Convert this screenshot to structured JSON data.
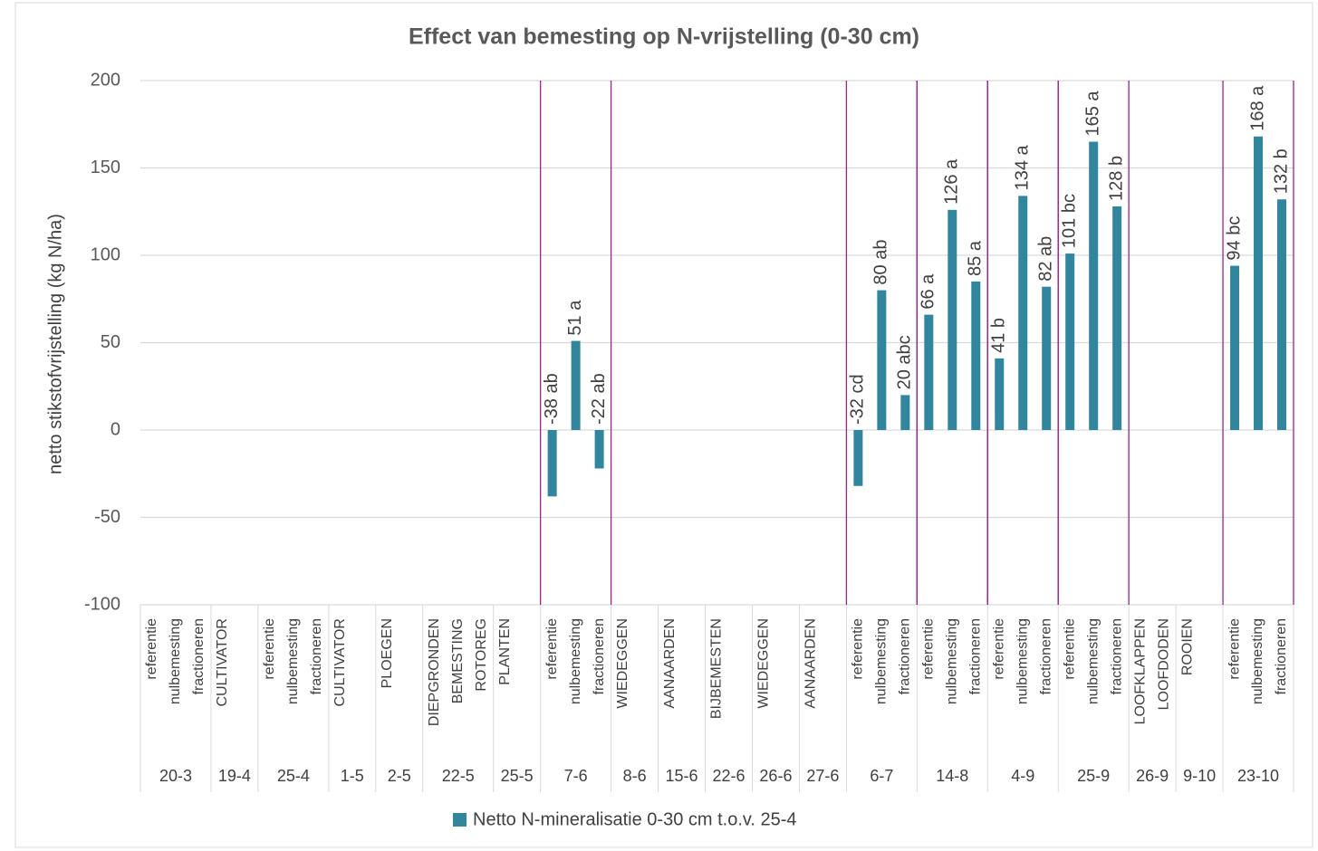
{
  "chart_data": {
    "type": "bar",
    "title": "Effect van bemesting op N-vrijstelling (0-30 cm)",
    "y_label": "netto stikstofvrijstelling (kg N/ha)",
    "series_name": "Netto N-mineralisatie 0-30 cm t.o.v. 25-4",
    "color": "#31859c",
    "separator_color": "#a0208f",
    "ylim": [
      -100,
      200
    ],
    "yticks": [
      -100,
      -50,
      0,
      50,
      100,
      150,
      200
    ],
    "grid": true,
    "legend": "bottom",
    "groups": [
      {
        "label": "20-3",
        "categories": [
          "referentie",
          "nulbemesting",
          "fractioneren"
        ],
        "values": [
          null,
          null,
          null
        ],
        "value_labels": [
          null,
          null,
          null
        ]
      },
      {
        "label": "19-4",
        "categories": [
          "CULTIVATOR",
          null
        ],
        "values": [
          null,
          null
        ],
        "value_labels": [
          null,
          null
        ]
      },
      {
        "label": "25-4",
        "categories": [
          "referentie",
          "nulbemesting",
          "fractioneren"
        ],
        "values": [
          null,
          null,
          null
        ],
        "value_labels": [
          null,
          null,
          null
        ]
      },
      {
        "label": "1-5",
        "categories": [
          "CULTIVATOR",
          null
        ],
        "values": [
          null,
          null
        ],
        "value_labels": [
          null,
          null
        ]
      },
      {
        "label": "2-5",
        "categories": [
          "PLOEGEN",
          null
        ],
        "values": [
          null,
          null
        ],
        "value_labels": [
          null,
          null
        ]
      },
      {
        "label": "22-5",
        "categories": [
          "DIEPGRONDEN",
          "BEMESTING",
          "ROTOREG"
        ],
        "values": [
          null,
          null,
          null
        ],
        "value_labels": [
          null,
          null,
          null
        ]
      },
      {
        "label": "25-5",
        "categories": [
          "PLANTEN",
          null
        ],
        "values": [
          null,
          null
        ],
        "value_labels": [
          null,
          null
        ]
      },
      {
        "label": "7-6",
        "categories": [
          "referentie",
          "nulbemesting",
          "fractioneren"
        ],
        "values": [
          -38,
          51,
          -22
        ],
        "value_labels": [
          "-38 ab",
          "51 a",
          "-22 ab"
        ]
      },
      {
        "label": "8-6",
        "categories": [
          "WIEDEGGEN",
          null
        ],
        "values": [
          null,
          null
        ],
        "value_labels": [
          null,
          null
        ]
      },
      {
        "label": "15-6",
        "categories": [
          "AANAARDEN",
          null
        ],
        "values": [
          null,
          null
        ],
        "value_labels": [
          null,
          null
        ]
      },
      {
        "label": "22-6",
        "categories": [
          "BIJBEMESTEN",
          null
        ],
        "values": [
          null,
          null
        ],
        "value_labels": [
          null,
          null
        ]
      },
      {
        "label": "26-6",
        "categories": [
          "WIEDEGGEN",
          null
        ],
        "values": [
          null,
          null
        ],
        "value_labels": [
          null,
          null
        ]
      },
      {
        "label": "27-6",
        "categories": [
          "AANAARDEN",
          null
        ],
        "values": [
          null,
          null
        ],
        "value_labels": [
          null,
          null
        ]
      },
      {
        "label": "6-7",
        "categories": [
          "referentie",
          "nulbemesting",
          "fractioneren"
        ],
        "values": [
          -32,
          80,
          20
        ],
        "value_labels": [
          "-32 cd",
          "80 ab",
          "20 abc"
        ]
      },
      {
        "label": "14-8",
        "categories": [
          "referentie",
          "nulbemesting",
          "fractioneren"
        ],
        "values": [
          66,
          126,
          85
        ],
        "value_labels": [
          "66 a",
          "126 a",
          "85 a"
        ]
      },
      {
        "label": "4-9",
        "categories": [
          "referentie",
          "nulbemesting",
          "fractioneren"
        ],
        "values": [
          41,
          134,
          82
        ],
        "value_labels": [
          "41 b",
          "134 a",
          "82 ab"
        ]
      },
      {
        "label": "25-9",
        "categories": [
          "referentie",
          "nulbemesting",
          "fractioneren"
        ],
        "values": [
          101,
          165,
          128
        ],
        "value_labels": [
          "101 bc",
          "165 a",
          "128 b"
        ]
      },
      {
        "label": "26-9",
        "categories": [
          "LOOFKLAPPEN",
          "LOOFDODEN"
        ],
        "values": [
          null,
          null
        ],
        "value_labels": [
          null,
          null
        ]
      },
      {
        "label": "9-10",
        "categories": [
          "ROOIEN",
          null
        ],
        "values": [
          null,
          null
        ],
        "value_labels": [
          null,
          null
        ]
      },
      {
        "label": "23-10",
        "categories": [
          "referentie",
          "nulbemesting",
          "fractioneren"
        ],
        "values": [
          94,
          168,
          132
        ],
        "value_labels": [
          "94 bc",
          "168 a",
          "132 b"
        ]
      }
    ]
  }
}
